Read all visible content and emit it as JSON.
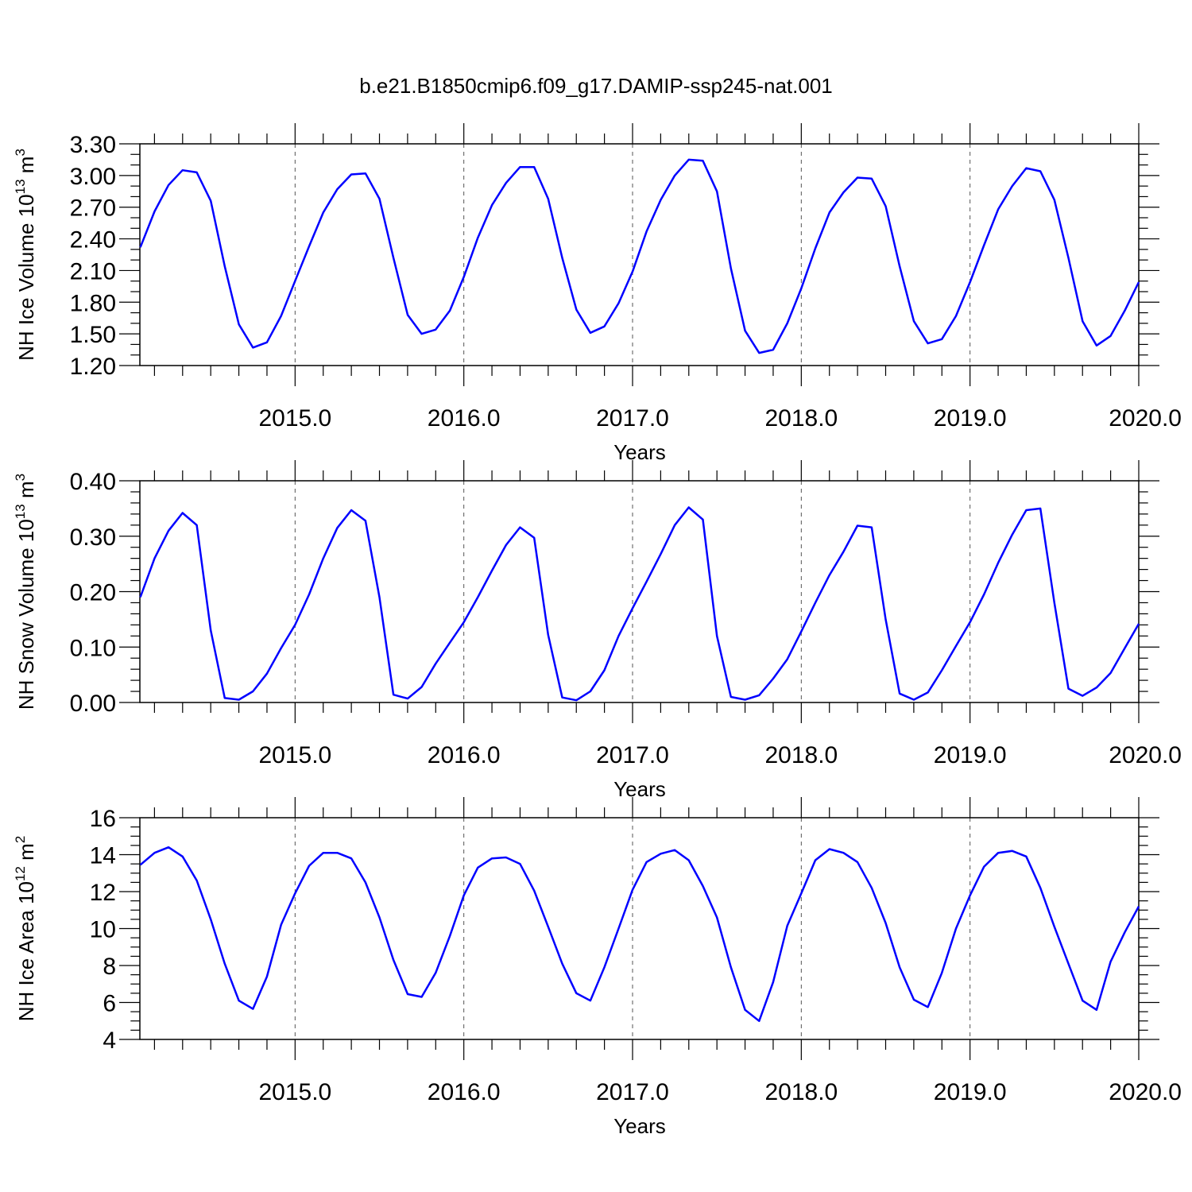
{
  "figure_title": "b.e21.B1850cmip6.f09_g17.DAMIP-ssp245-nat.001",
  "line_color": "#0000ff",
  "chart_data": [
    {
      "type": "line",
      "ylabel_main": "NH Ice Volume 10",
      "ylabel_exp": "13",
      "ylabel_unit": " m",
      "ylabel_unit_exp": "3",
      "xlabel": "Years",
      "xlim": [
        2014.08,
        2020.0
      ],
      "ylim": [
        1.2,
        3.3
      ],
      "y_major_ticks": [
        1.2,
        1.5,
        1.8,
        2.1,
        2.4,
        2.7,
        3.0,
        3.3
      ],
      "y_tick_labels": [
        "1.20",
        "1.50",
        "1.80",
        "2.10",
        "2.40",
        "2.70",
        "3.00",
        "3.30"
      ],
      "y_minor_step": 0.1,
      "x_major_ticks": [
        2015,
        2016,
        2017,
        2018,
        2019,
        2020
      ],
      "x_tick_labels": [
        "2015.0",
        "2016.0",
        "2017.0",
        "2018.0",
        "2019.0",
        "2020.0"
      ],
      "x_minor_step": 0.1666667,
      "grid_x": true,
      "x": [
        2014.083,
        2014.167,
        2014.25,
        2014.333,
        2014.417,
        2014.5,
        2014.583,
        2014.667,
        2014.75,
        2014.833,
        2014.917,
        2015.0,
        2015.083,
        2015.167,
        2015.25,
        2015.333,
        2015.417,
        2015.5,
        2015.583,
        2015.667,
        2015.75,
        2015.833,
        2015.917,
        2016.0,
        2016.083,
        2016.167,
        2016.25,
        2016.333,
        2016.417,
        2016.5,
        2016.583,
        2016.667,
        2016.75,
        2016.833,
        2016.917,
        2017.0,
        2017.083,
        2017.167,
        2017.25,
        2017.333,
        2017.417,
        2017.5,
        2017.583,
        2017.667,
        2017.75,
        2017.833,
        2017.917,
        2018.0,
        2018.083,
        2018.167,
        2018.25,
        2018.333,
        2018.417,
        2018.5,
        2018.583,
        2018.667,
        2018.75,
        2018.833,
        2018.917,
        2019.0,
        2019.083,
        2019.167,
        2019.25,
        2019.333,
        2019.417,
        2019.5,
        2019.583,
        2019.667,
        2019.75,
        2019.833,
        2019.917,
        2020.0
      ],
      "series": [
        {
          "values": [
            2.32,
            2.66,
            2.91,
            3.05,
            3.03,
            2.76,
            2.14,
            1.59,
            1.37,
            1.42,
            1.67,
            2.0,
            2.33,
            2.65,
            2.87,
            3.01,
            3.02,
            2.78,
            2.22,
            1.68,
            1.5,
            1.54,
            1.72,
            2.04,
            2.41,
            2.72,
            2.93,
            3.08,
            3.08,
            2.78,
            2.22,
            1.73,
            1.51,
            1.57,
            1.79,
            2.09,
            2.47,
            2.77,
            3.0,
            3.15,
            3.14,
            2.85,
            2.12,
            1.53,
            1.32,
            1.35,
            1.6,
            1.93,
            2.31,
            2.65,
            2.84,
            2.98,
            2.97,
            2.71,
            2.14,
            1.62,
            1.41,
            1.45,
            1.67,
            1.99,
            2.34,
            2.68,
            2.9,
            3.07,
            3.04,
            2.77,
            2.22,
            1.62,
            1.39,
            1.48,
            1.72,
            1.99
          ]
        }
      ]
    },
    {
      "type": "line",
      "ylabel_main": "NH Snow Volume 10",
      "ylabel_exp": "13",
      "ylabel_unit": " m",
      "ylabel_unit_exp": "3",
      "xlabel": "Years",
      "xlim": [
        2014.08,
        2020.0
      ],
      "ylim": [
        0.0,
        0.4
      ],
      "y_major_ticks": [
        0.0,
        0.1,
        0.2,
        0.3,
        0.4
      ],
      "y_tick_labels": [
        "0.00",
        "0.10",
        "0.20",
        "0.30",
        "0.40"
      ],
      "y_minor_step": 0.02,
      "x_major_ticks": [
        2015,
        2016,
        2017,
        2018,
        2019,
        2020
      ],
      "x_tick_labels": [
        "2015.0",
        "2016.0",
        "2017.0",
        "2018.0",
        "2019.0",
        "2020.0"
      ],
      "x_minor_step": 0.1666667,
      "grid_x": true,
      "x": [
        2014.083,
        2014.167,
        2014.25,
        2014.333,
        2014.417,
        2014.5,
        2014.583,
        2014.667,
        2014.75,
        2014.833,
        2014.917,
        2015.0,
        2015.083,
        2015.167,
        2015.25,
        2015.333,
        2015.417,
        2015.5,
        2015.583,
        2015.667,
        2015.75,
        2015.833,
        2015.917,
        2016.0,
        2016.083,
        2016.167,
        2016.25,
        2016.333,
        2016.417,
        2016.5,
        2016.583,
        2016.667,
        2016.75,
        2016.833,
        2016.917,
        2017.0,
        2017.083,
        2017.167,
        2017.25,
        2017.333,
        2017.417,
        2017.5,
        2017.583,
        2017.667,
        2017.75,
        2017.833,
        2017.917,
        2018.0,
        2018.083,
        2018.167,
        2018.25,
        2018.333,
        2018.417,
        2018.5,
        2018.583,
        2018.667,
        2018.75,
        2018.833,
        2018.917,
        2019.0,
        2019.083,
        2019.167,
        2019.25,
        2019.333,
        2019.417,
        2019.5,
        2019.583,
        2019.667,
        2019.75,
        2019.833,
        2019.917,
        2020.0
      ],
      "series": [
        {
          "values": [
            0.19,
            0.26,
            0.31,
            0.342,
            0.32,
            0.13,
            0.008,
            0.005,
            0.02,
            0.052,
            0.098,
            0.14,
            0.195,
            0.26,
            0.315,
            0.347,
            0.328,
            0.19,
            0.014,
            0.007,
            0.028,
            0.07,
            0.108,
            0.145,
            0.19,
            0.238,
            0.284,
            0.316,
            0.297,
            0.122,
            0.009,
            0.004,
            0.02,
            0.058,
            0.12,
            0.17,
            0.218,
            0.268,
            0.32,
            0.352,
            0.33,
            0.12,
            0.01,
            0.005,
            0.013,
            0.043,
            0.078,
            0.128,
            0.18,
            0.23,
            0.272,
            0.319,
            0.316,
            0.15,
            0.016,
            0.005,
            0.018,
            0.058,
            0.102,
            0.145,
            0.195,
            0.252,
            0.303,
            0.347,
            0.35,
            0.18,
            0.025,
            0.012,
            0.027,
            0.053,
            0.098,
            0.142
          ]
        }
      ]
    },
    {
      "type": "line",
      "ylabel_main": "NH Ice Area 10",
      "ylabel_exp": "12",
      "ylabel_unit": " m",
      "ylabel_unit_exp": "2",
      "xlabel": "Years",
      "xlim": [
        2014.08,
        2020.0
      ],
      "ylim": [
        4,
        16
      ],
      "y_major_ticks": [
        4,
        6,
        8,
        10,
        12,
        14,
        16
      ],
      "y_tick_labels": [
        "4",
        "6",
        "8",
        "10",
        "12",
        "14",
        "16"
      ],
      "y_minor_step": 0.5,
      "x_major_ticks": [
        2015,
        2016,
        2017,
        2018,
        2019,
        2020
      ],
      "x_tick_labels": [
        "2015.0",
        "2016.0",
        "2017.0",
        "2018.0",
        "2019.0",
        "2020.0"
      ],
      "x_minor_step": 0.1666667,
      "grid_x": true,
      "x": [
        2014.083,
        2014.167,
        2014.25,
        2014.333,
        2014.417,
        2014.5,
        2014.583,
        2014.667,
        2014.75,
        2014.833,
        2014.917,
        2015.0,
        2015.083,
        2015.167,
        2015.25,
        2015.333,
        2015.417,
        2015.5,
        2015.583,
        2015.667,
        2015.75,
        2015.833,
        2015.917,
        2016.0,
        2016.083,
        2016.167,
        2016.25,
        2016.333,
        2016.417,
        2016.5,
        2016.583,
        2016.667,
        2016.75,
        2016.833,
        2016.917,
        2017.0,
        2017.083,
        2017.167,
        2017.25,
        2017.333,
        2017.417,
        2017.5,
        2017.583,
        2017.667,
        2017.75,
        2017.833,
        2017.917,
        2018.0,
        2018.083,
        2018.167,
        2018.25,
        2018.333,
        2018.417,
        2018.5,
        2018.583,
        2018.667,
        2018.75,
        2018.833,
        2018.917,
        2019.0,
        2019.083,
        2019.167,
        2019.25,
        2019.333,
        2019.417,
        2019.5,
        2019.583,
        2019.667,
        2019.75,
        2019.833,
        2019.917,
        2020.0
      ],
      "series": [
        {
          "values": [
            13.45,
            14.1,
            14.4,
            13.9,
            12.6,
            10.5,
            8.1,
            6.1,
            5.65,
            7.4,
            10.2,
            11.9,
            13.4,
            14.1,
            14.1,
            13.8,
            12.5,
            10.6,
            8.3,
            6.45,
            6.3,
            7.6,
            9.6,
            11.8,
            13.3,
            13.8,
            13.85,
            13.5,
            12.05,
            10.1,
            8.1,
            6.5,
            6.1,
            7.9,
            10.0,
            12.1,
            13.6,
            14.05,
            14.25,
            13.7,
            12.3,
            10.6,
            7.9,
            5.6,
            5.0,
            7.1,
            10.15,
            11.9,
            13.7,
            14.3,
            14.1,
            13.6,
            12.2,
            10.3,
            7.9,
            6.15,
            5.75,
            7.6,
            10.0,
            11.8,
            13.35,
            14.1,
            14.2,
            13.9,
            12.2,
            10.1,
            8.1,
            6.1,
            5.6,
            8.2,
            9.8,
            11.2
          ]
        }
      ]
    }
  ]
}
